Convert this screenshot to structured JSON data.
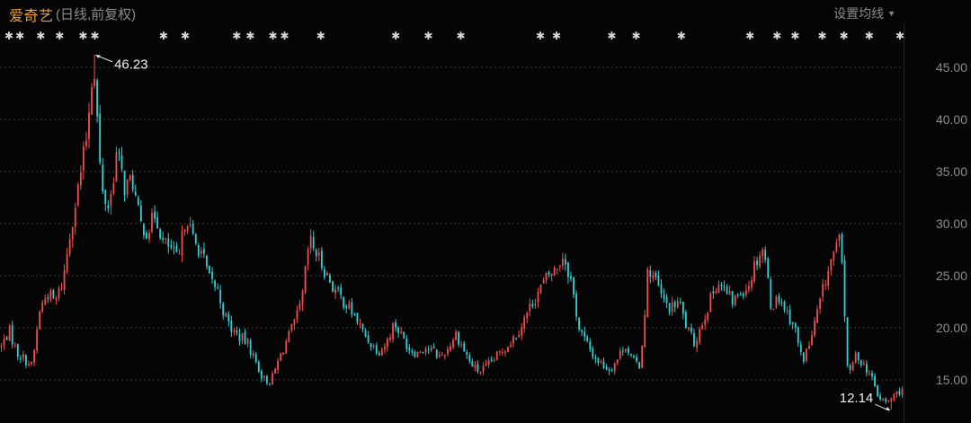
{
  "header": {
    "title": "爱奇艺",
    "subtitle": "(日线,前复权)",
    "settings_label": "设置均线"
  },
  "colors": {
    "up": "#ef4d4d",
    "down": "#2fd0d4",
    "grid": "#3a3a3a",
    "axis_text": "#8c8c8c",
    "marker": "#d8d8d8",
    "title": "#f0a030"
  },
  "chart_data": {
    "type": "candlestick",
    "title": "",
    "xlabel": "",
    "ylabel": "",
    "ylim": [
      12,
      47
    ],
    "yticks": [
      15.0,
      20.0,
      25.0,
      30.0,
      35.0,
      40.0,
      45.0
    ],
    "ytick_labels": [
      "15.00",
      "20.00",
      "25.00",
      "30.00",
      "35.00",
      "40.00",
      "45.00"
    ],
    "grid": "horizontal dashed",
    "annotations": [
      {
        "label": "46.23",
        "value": 46.23,
        "position": "max"
      },
      {
        "label": "12.14",
        "value": 12.14,
        "position": "min"
      }
    ],
    "event_marker_symbol": "✱",
    "closes": [
      18.2,
      19.8,
      17.6,
      17.0,
      16.3,
      21.8,
      23.3,
      22.5,
      24.5,
      29.5,
      33.5,
      38.0,
      46.0,
      33.0,
      31.5,
      37.0,
      33.5,
      34.2,
      30.0,
      29.2,
      31.0,
      28.2,
      27.6,
      26.3,
      31.0,
      28.2,
      27.3,
      24.7,
      23.8,
      21.2,
      19.7,
      19.1,
      18.5,
      16.8,
      15.1,
      14.8,
      16.9,
      18.7,
      20.3,
      22.4,
      28.5,
      27.0,
      25.5,
      24.0,
      23.0,
      22.0,
      21.0,
      19.5,
      18.5,
      17.8,
      18.5,
      20.5,
      19.2,
      18.0,
      17.6,
      18.2,
      17.8,
      17.2,
      18.0,
      19.5,
      18.0,
      16.5,
      15.8,
      16.2,
      17.0,
      17.8,
      18.6,
      19.5,
      21.0,
      22.5,
      23.8,
      25.0,
      25.6,
      27.0,
      24.5,
      20.0,
      18.5,
      17.2,
      16.5,
      16.0,
      17.0,
      18.5,
      16.8,
      16.4,
      25.8,
      24.5,
      22.5,
      21.8,
      22.6,
      20.0,
      18.5,
      20.5,
      22.5,
      24.5,
      23.5,
      22.5,
      23.5,
      24.0,
      26.5,
      27.8,
      22.0,
      23.0,
      21.5,
      20.2,
      16.8,
      18.5,
      21.5,
      24.5,
      27.0,
      28.5,
      15.0,
      17.5,
      16.5,
      15.2,
      13.2,
      12.8,
      13.5,
      14.2
    ],
    "event_markers_x": [
      0.01,
      0.022,
      0.045,
      0.066,
      0.092,
      0.105,
      0.181,
      0.205,
      0.262,
      0.277,
      0.302,
      0.315,
      0.355,
      0.438,
      0.474,
      0.51,
      0.598,
      0.616,
      0.677,
      0.704,
      0.754,
      0.83,
      0.86,
      0.88,
      0.91,
      0.934,
      0.962,
      0.996
    ]
  }
}
